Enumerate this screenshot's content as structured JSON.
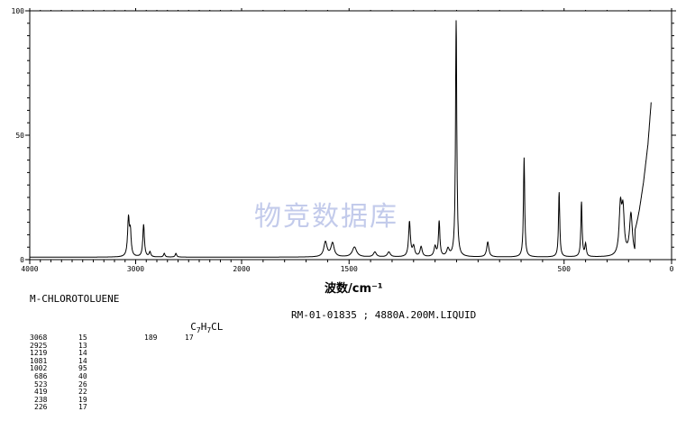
{
  "compound": {
    "name": "M-CHLOROTOLUENE",
    "formula_main": "C",
    "formula_sub1": "7",
    "formula_mid": "H",
    "formula_sub2": "7",
    "formula_tail": "CL",
    "record": "RM-01-01835 ; 4880A.200M.LIQUID"
  },
  "watermark": "物竞数据库",
  "extra_peak": {
    "wavenumber": "189",
    "intensity": "17"
  },
  "peak_table": [
    {
      "wavenumber": "3068",
      "intensity": "15"
    },
    {
      "wavenumber": "2925",
      "intensity": "13"
    },
    {
      "wavenumber": "1219",
      "intensity": "14"
    },
    {
      "wavenumber": "1081",
      "intensity": "14"
    },
    {
      "wavenumber": "1002",
      "intensity": "95"
    },
    {
      "wavenumber": "686",
      "intensity": "40"
    },
    {
      "wavenumber": "523",
      "intensity": "26"
    },
    {
      "wavenumber": "419",
      "intensity": "22"
    },
    {
      "wavenumber": "238",
      "intensity": "19"
    },
    {
      "wavenumber": "226",
      "intensity": "17"
    }
  ],
  "chart_data": {
    "type": "line",
    "title": "",
    "xlabel": "波数/cm⁻¹",
    "ylabel": "",
    "xlim": [
      4000,
      0
    ],
    "ylim": [
      0,
      100
    ],
    "x_ticks": [
      {
        "value": 4000,
        "label": "4000"
      },
      {
        "value": 3000,
        "label": "3000"
      },
      {
        "value": 2000,
        "label": "2000"
      },
      {
        "value": 1500,
        "label": "1500"
      },
      {
        "value": 500,
        "label": "500"
      },
      {
        "value": 0,
        "label": "0"
      }
    ],
    "y_ticks": [
      {
        "value": 0,
        "label": "0"
      },
      {
        "value": 50,
        "label": "50"
      },
      {
        "value": 100,
        "label": "100"
      }
    ],
    "baseline": 1,
    "series": [
      {
        "color": "#000000",
        "peaks": [
          {
            "x": 3068,
            "y": 15,
            "w": 10
          },
          {
            "x": 3050,
            "y": 9,
            "w": 9
          },
          {
            "x": 2925,
            "y": 13,
            "w": 9
          },
          {
            "x": 2865,
            "y": 2,
            "w": 9
          },
          {
            "x": 2730,
            "y": 1.5,
            "w": 8
          },
          {
            "x": 2620,
            "y": 1.5,
            "w": 8
          },
          {
            "x": 1610,
            "y": 6,
            "w": 9
          },
          {
            "x": 1577,
            "y": 5.5,
            "w": 9
          },
          {
            "x": 1475,
            "y": 4,
            "w": 12
          },
          {
            "x": 1380,
            "y": 2,
            "w": 8
          },
          {
            "x": 1315,
            "y": 2,
            "w": 8
          },
          {
            "x": 1219,
            "y": 14,
            "w": 5
          },
          {
            "x": 1200,
            "y": 4,
            "w": 6
          },
          {
            "x": 1165,
            "y": 4,
            "w": 6
          },
          {
            "x": 1100,
            "y": 4,
            "w": 6
          },
          {
            "x": 1081,
            "y": 14,
            "w": 4
          },
          {
            "x": 1040,
            "y": 3,
            "w": 7
          },
          {
            "x": 1002,
            "y": 95,
            "w": 3.5
          },
          {
            "x": 855,
            "y": 6,
            "w": 6
          },
          {
            "x": 686,
            "y": 40,
            "w": 3.5
          },
          {
            "x": 523,
            "y": 26,
            "w": 3.5
          },
          {
            "x": 419,
            "y": 22,
            "w": 3.5
          },
          {
            "x": 400,
            "y": 5,
            "w": 4
          },
          {
            "x": 238,
            "y": 19,
            "w": 7
          },
          {
            "x": 226,
            "y": 17,
            "w": 7
          },
          {
            "x": 189,
            "y": 17,
            "w": 8
          }
        ],
        "rising_edge": [
          {
            "x": 170,
            "y": 8
          },
          {
            "x": 150,
            "y": 18
          },
          {
            "x": 130,
            "y": 30
          },
          {
            "x": 110,
            "y": 45
          },
          {
            "x": 95,
            "y": 62
          }
        ]
      }
    ]
  }
}
